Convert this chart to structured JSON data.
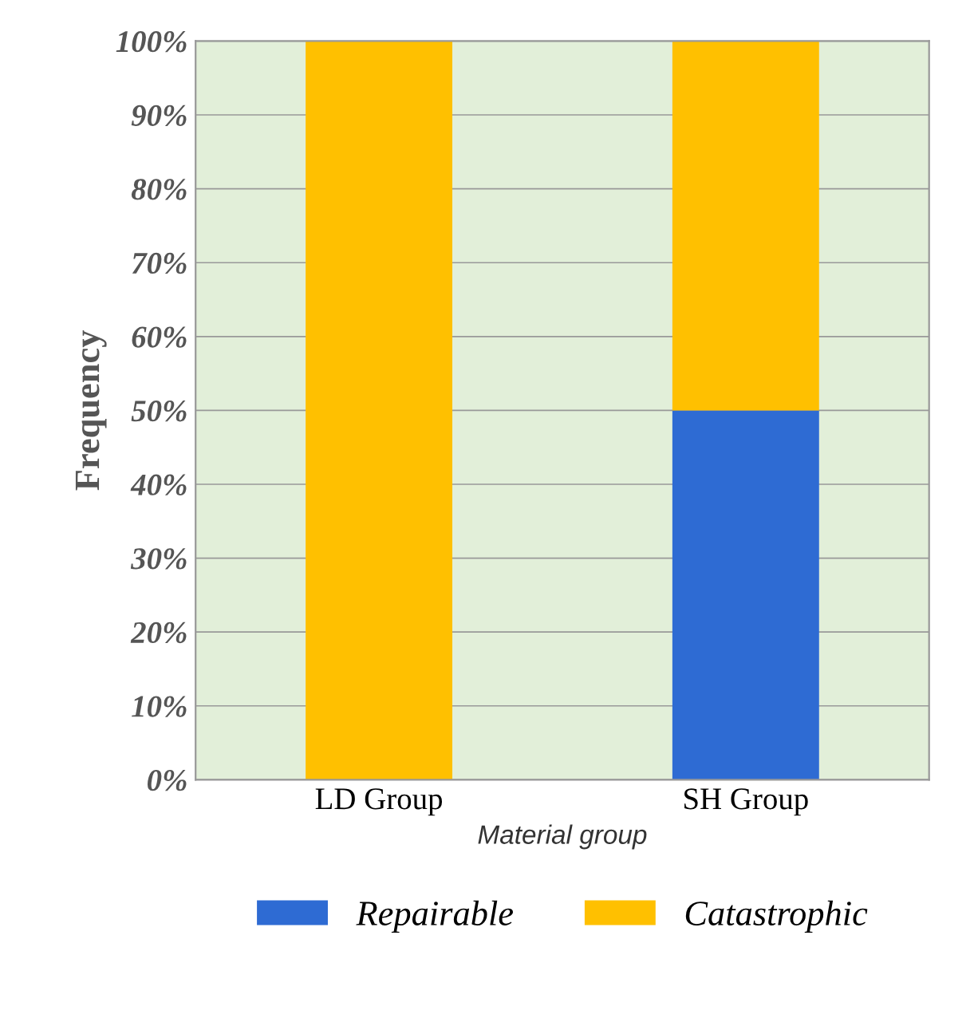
{
  "chart_data": {
    "type": "bar",
    "stacked": true,
    "ylabel": "Frequency",
    "xlabel": "Material group",
    "categories": [
      "LD Group",
      "SH Group"
    ],
    "series": [
      {
        "name": "Repairable",
        "color": "#2e6bd3",
        "values": [
          0,
          50
        ]
      },
      {
        "name": "Catastrophic",
        "color": "#ffc000",
        "values": [
          100,
          50
        ]
      }
    ],
    "ylim": [
      0,
      100
    ],
    "yticks": [
      {
        "value": 0,
        "label": "0%"
      },
      {
        "value": 10,
        "label": "10%"
      },
      {
        "value": 20,
        "label": "20%"
      },
      {
        "value": 30,
        "label": "30%"
      },
      {
        "value": 40,
        "label": "40%"
      },
      {
        "value": 50,
        "label": "50%"
      },
      {
        "value": 60,
        "label": "60%"
      },
      {
        "value": 70,
        "label": "70%"
      },
      {
        "value": 80,
        "label": "80%"
      },
      {
        "value": 90,
        "label": "90%"
      },
      {
        "value": 100,
        "label": "100%"
      }
    ],
    "grid": "y",
    "legend": "bottom"
  }
}
